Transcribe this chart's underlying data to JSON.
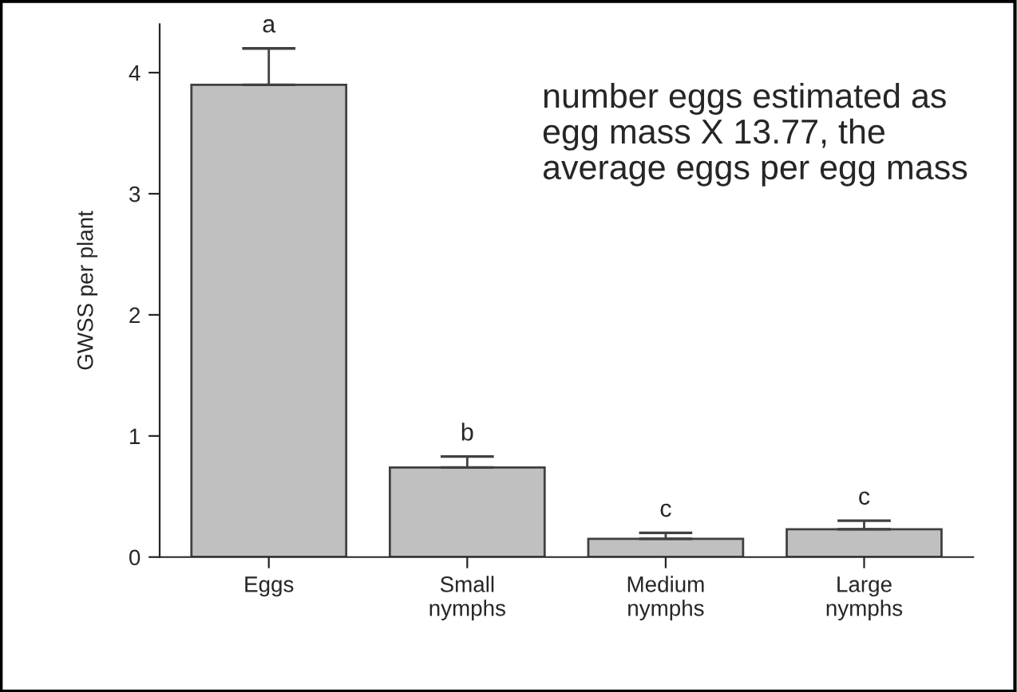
{
  "chart_data": {
    "type": "bar",
    "ylabel": "GWSS per plant",
    "categories": [
      "Eggs",
      "Small\nnymphs",
      "Medium\nnymphs",
      "Large\nnymphs"
    ],
    "values": [
      3.9,
      0.74,
      0.15,
      0.23
    ],
    "errors": [
      [
        3.9,
        4.2
      ],
      [
        0.74,
        0.83
      ],
      [
        0.15,
        0.2
      ],
      [
        0.23,
        0.3
      ]
    ],
    "color": "#c0c0c0",
    "value_labels": [
      "a",
      "b",
      "c",
      "c"
    ],
    "ylim": [
      0,
      4.4
    ],
    "yticks": [
      0,
      1,
      2,
      3,
      4
    ],
    "annotations": [
      "number eggs estimated as\negg mass X 13.77, the\naverage eggs per egg mass"
    ],
    "grid": false
  }
}
